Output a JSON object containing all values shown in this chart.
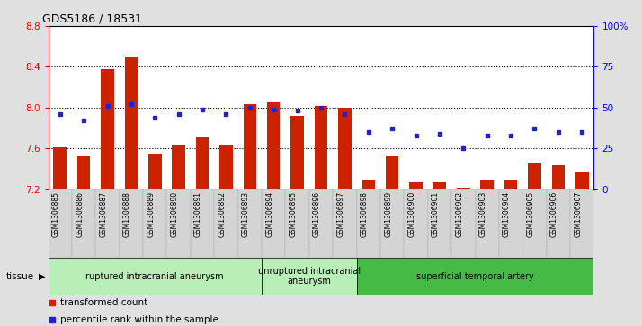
{
  "title": "GDS5186 / 18531",
  "samples": [
    "GSM1306885",
    "GSM1306886",
    "GSM1306887",
    "GSM1306888",
    "GSM1306889",
    "GSM1306890",
    "GSM1306891",
    "GSM1306892",
    "GSM1306893",
    "GSM1306894",
    "GSM1306895",
    "GSM1306896",
    "GSM1306897",
    "GSM1306898",
    "GSM1306899",
    "GSM1306900",
    "GSM1306901",
    "GSM1306902",
    "GSM1306903",
    "GSM1306904",
    "GSM1306905",
    "GSM1306906",
    "GSM1306907"
  ],
  "bar_values": [
    7.61,
    7.52,
    8.38,
    8.5,
    7.54,
    7.63,
    7.72,
    7.63,
    8.03,
    8.05,
    7.92,
    8.02,
    8.0,
    7.29,
    7.52,
    7.27,
    7.27,
    7.21,
    7.29,
    7.29,
    7.46,
    7.43,
    7.37
  ],
  "percentile_values": [
    46,
    42,
    51,
    52,
    44,
    46,
    49,
    46,
    50,
    49,
    48,
    50,
    46,
    35,
    37,
    33,
    34,
    25,
    33,
    33,
    37,
    35,
    35
  ],
  "groups_info": [
    {
      "label": "ruptured intracranial aneurysm",
      "start": 0,
      "end": 8,
      "color": "#b8eeb8"
    },
    {
      "label": "unruptured intracranial\naneurysm",
      "start": 9,
      "end": 12,
      "color": "#b8eeb8"
    },
    {
      "label": "superficial temporal artery",
      "start": 13,
      "end": 22,
      "color": "#44bb44"
    }
  ],
  "ylim_left": [
    7.2,
    8.8
  ],
  "ylim_right": [
    0,
    100
  ],
  "yticks_left": [
    7.2,
    7.6,
    8.0,
    8.4,
    8.8
  ],
  "yticks_right": [
    0,
    25,
    50,
    75,
    100
  ],
  "bar_color": "#cc2200",
  "dot_color": "#2222cc",
  "bg_color": "#e0e0e0",
  "cell_color": "#d4d4d4",
  "plot_bg": "#ffffff",
  "tissue_label": "tissue",
  "legend_bar": "transformed count",
  "legend_dot": "percentile rank within the sample",
  "gridline_ticks": [
    7.6,
    8.0,
    8.4
  ]
}
